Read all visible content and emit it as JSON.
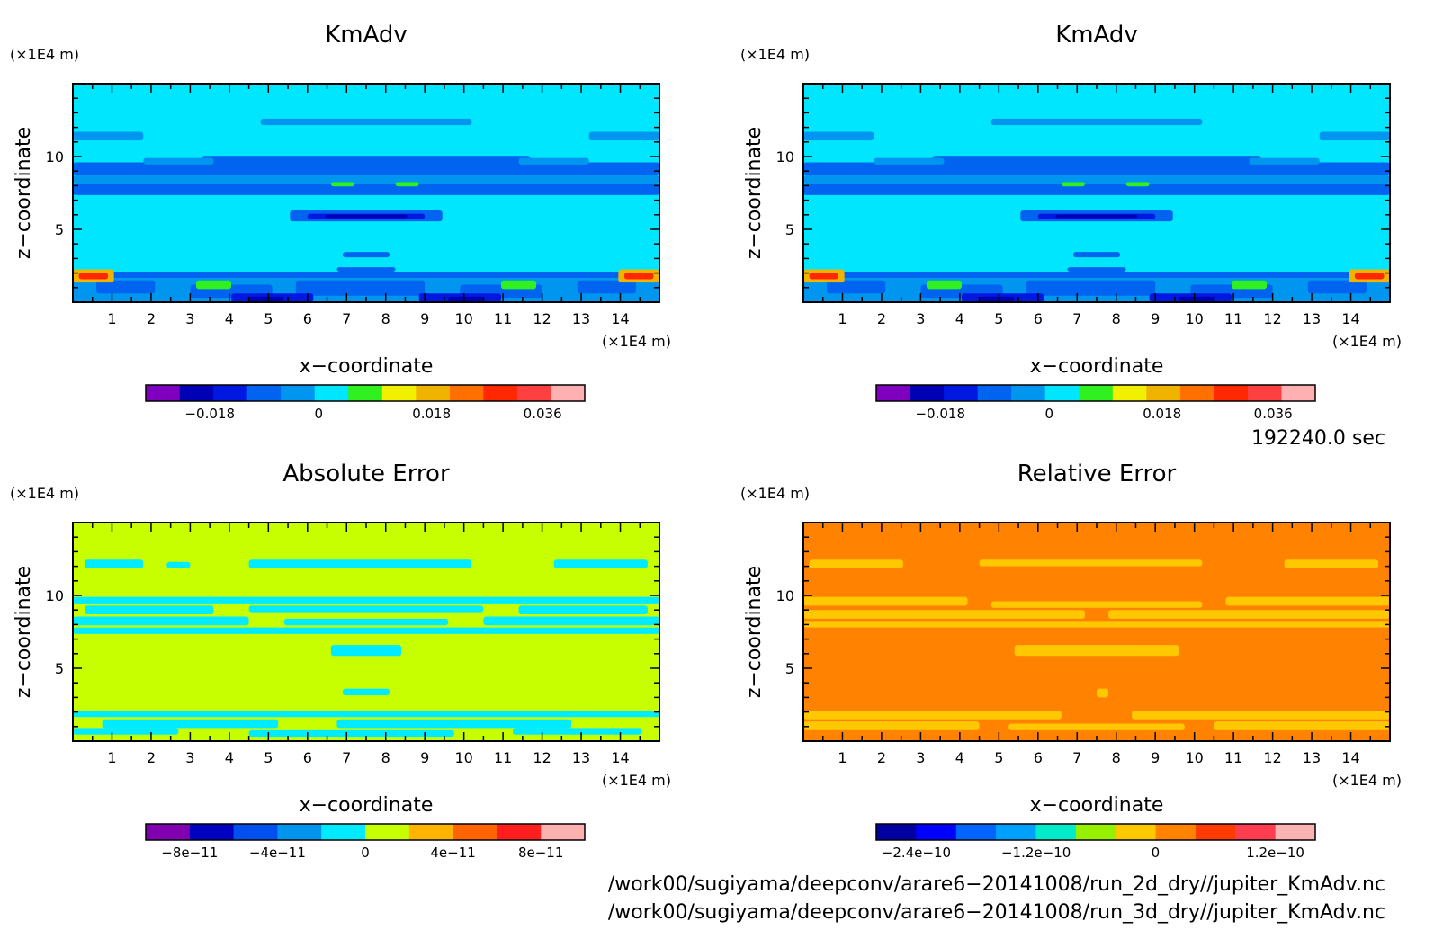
{
  "colors": {
    "kmadv": [
      "#8000c0",
      "#0000b4",
      "#0018e0",
      "#0064f0",
      "#0096f0",
      "#00e6ff",
      "#30f020",
      "#f0f000",
      "#f0b400",
      "#ff7000",
      "#ff2800",
      "#ff4040",
      "#ffb0b0"
    ],
    "abs": [
      "#8000b0",
      "#0000c0",
      "#0050f0",
      "#0096f0",
      "#00ebff",
      "#c8ff00",
      "#ffb400",
      "#ff6400",
      "#ff1e1e",
      "#ffb0b0"
    ],
    "rel": [
      "#0000a0",
      "#0000ff",
      "#0064ff",
      "#00a0ff",
      "#00ebc8",
      "#96f000",
      "#ffc800",
      "#ff8200",
      "#ff3c00",
      "#ff3c50",
      "#ffb4b4"
    ]
  },
  "chart_data": [
    {
      "type": "heatmap",
      "title": "KmAdv",
      "xlabel": "x−coordinate",
      "ylabel": "z−coordinate",
      "x_unit": "(×1E4 m)",
      "y_unit": "(×1E4 m)",
      "xlim": [
        0,
        15
      ],
      "ylim": [
        0,
        15
      ],
      "x_ticks": [
        "1",
        "2",
        "3",
        "4",
        "5",
        "6",
        "7",
        "8",
        "9",
        "10",
        "11",
        "12",
        "13",
        "14"
      ],
      "y_ticks": [
        "5",
        "10"
      ],
      "background_value": "0 to 0.006",
      "colorbar_labels": [
        "−0.018",
        "0",
        "0.018",
        "0.036"
      ],
      "colorbar_range": [
        -0.024,
        0.054
      ]
    },
    {
      "type": "heatmap",
      "title": "KmAdv",
      "xlabel": "x−coordinate",
      "ylabel": "z−coordinate",
      "x_unit": "(×1E4 m)",
      "y_unit": "(×1E4 m)",
      "xlim": [
        0,
        15
      ],
      "ylim": [
        0,
        15
      ],
      "x_ticks": [
        "1",
        "2",
        "3",
        "4",
        "5",
        "6",
        "7",
        "8",
        "9",
        "10",
        "11",
        "12",
        "13",
        "14"
      ],
      "y_ticks": [
        "5",
        "10"
      ],
      "background_value": "0 to 0.006",
      "colorbar_labels": [
        "−0.018",
        "0",
        "0.018",
        "0.036"
      ],
      "colorbar_range": [
        -0.024,
        0.054
      ]
    },
    {
      "type": "heatmap",
      "title": "Absolute Error",
      "xlabel": "x−coordinate",
      "ylabel": "z−coordinate",
      "x_unit": "(×1E4 m)",
      "y_unit": "(×1E4 m)",
      "xlim": [
        0,
        15
      ],
      "ylim": [
        0,
        15
      ],
      "x_ticks": [
        "1",
        "2",
        "3",
        "4",
        "5",
        "6",
        "7",
        "8",
        "9",
        "10",
        "11",
        "12",
        "13",
        "14"
      ],
      "y_ticks": [
        "5",
        "10"
      ],
      "background_value": "0 to 2e-11",
      "colorbar_labels": [
        "−8e−11",
        "−4e−11",
        "0",
        "4e−11",
        "8e−11"
      ],
      "colorbar_range": [
        -1e-10,
        1e-10
      ]
    },
    {
      "type": "heatmap",
      "title": "Relative Error",
      "xlabel": "x−coordinate",
      "ylabel": "z−coordinate",
      "x_unit": "(×1E4 m)",
      "y_unit": "(×1E4 m)",
      "xlim": [
        0,
        15
      ],
      "ylim": [
        0,
        15
      ],
      "x_ticks": [
        "1",
        "2",
        "3",
        "4",
        "5",
        "6",
        "7",
        "8",
        "9",
        "10",
        "11",
        "12",
        "13",
        "14"
      ],
      "y_ticks": [
        "5",
        "10"
      ],
      "background_value": "0.4e-10 to 0.8e-10",
      "colorbar_labels": [
        "−2.4e−10",
        "−1.2e−10",
        "0",
        "1.2e−10"
      ],
      "colorbar_range": [
        -3.2e-10,
        1.2e-10
      ]
    }
  ],
  "time_label": "192240.0 sec",
  "file_paths": [
    "/work00/sugiyama/deepconv/arare6−20141008/run_2d_dry//jupiter_KmAdv.nc",
    "/work00/sugiyama/deepconv/arare6−20141008/run_3d_dry//jupiter_KmAdv.nc"
  ]
}
